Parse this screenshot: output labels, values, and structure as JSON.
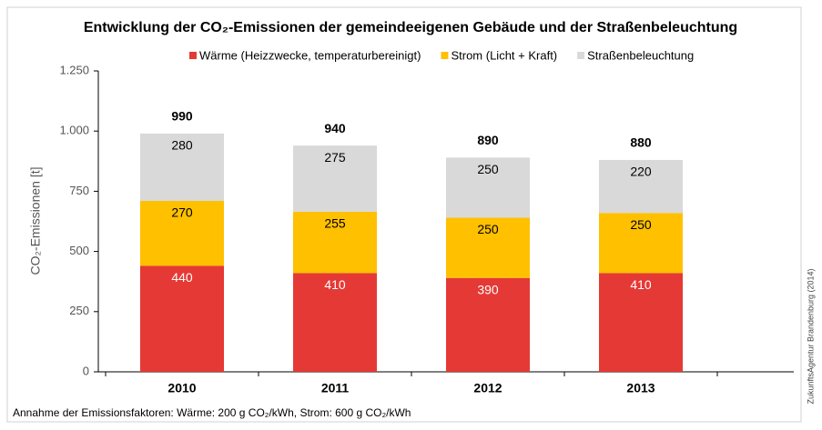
{
  "chart_data": {
    "type": "stacked_bar",
    "title": "Entwicklung der CO₂-Emissionen der gemeindeeigenen Gebäude und der Straßenbeleuchtung",
    "ylabel": "CO₂-Emissionen [t]",
    "categories": [
      "2010",
      "2011",
      "2012",
      "2013"
    ],
    "series": [
      {
        "name": "Wärme (Heizzwecke, temperaturbereinigt)",
        "color": "#e53935",
        "values": [
          440,
          410,
          390,
          410
        ]
      },
      {
        "name": "Strom (Licht + Kraft)",
        "color": "#ffc000",
        "values": [
          270,
          255,
          250,
          250
        ]
      },
      {
        "name": "Straßenbeleuchtung",
        "color": "#d9d9d9",
        "values": [
          280,
          275,
          250,
          220
        ]
      }
    ],
    "totals": [
      990,
      940,
      890,
      880
    ],
    "ylim": [
      0,
      1250
    ],
    "yticks": [
      0,
      250,
      500,
      750,
      {
        "value": 1000,
        "label": "1.000"
      },
      {
        "value": 1250,
        "label": "1.250"
      }
    ],
    "footnote": "Annahme der Emissionsfaktoren: Wärme: 200 g CO₂/kWh, Strom: 600 g CO₂/kWh",
    "source": "ZukunftsAgentur Brandenburg (2014)"
  }
}
